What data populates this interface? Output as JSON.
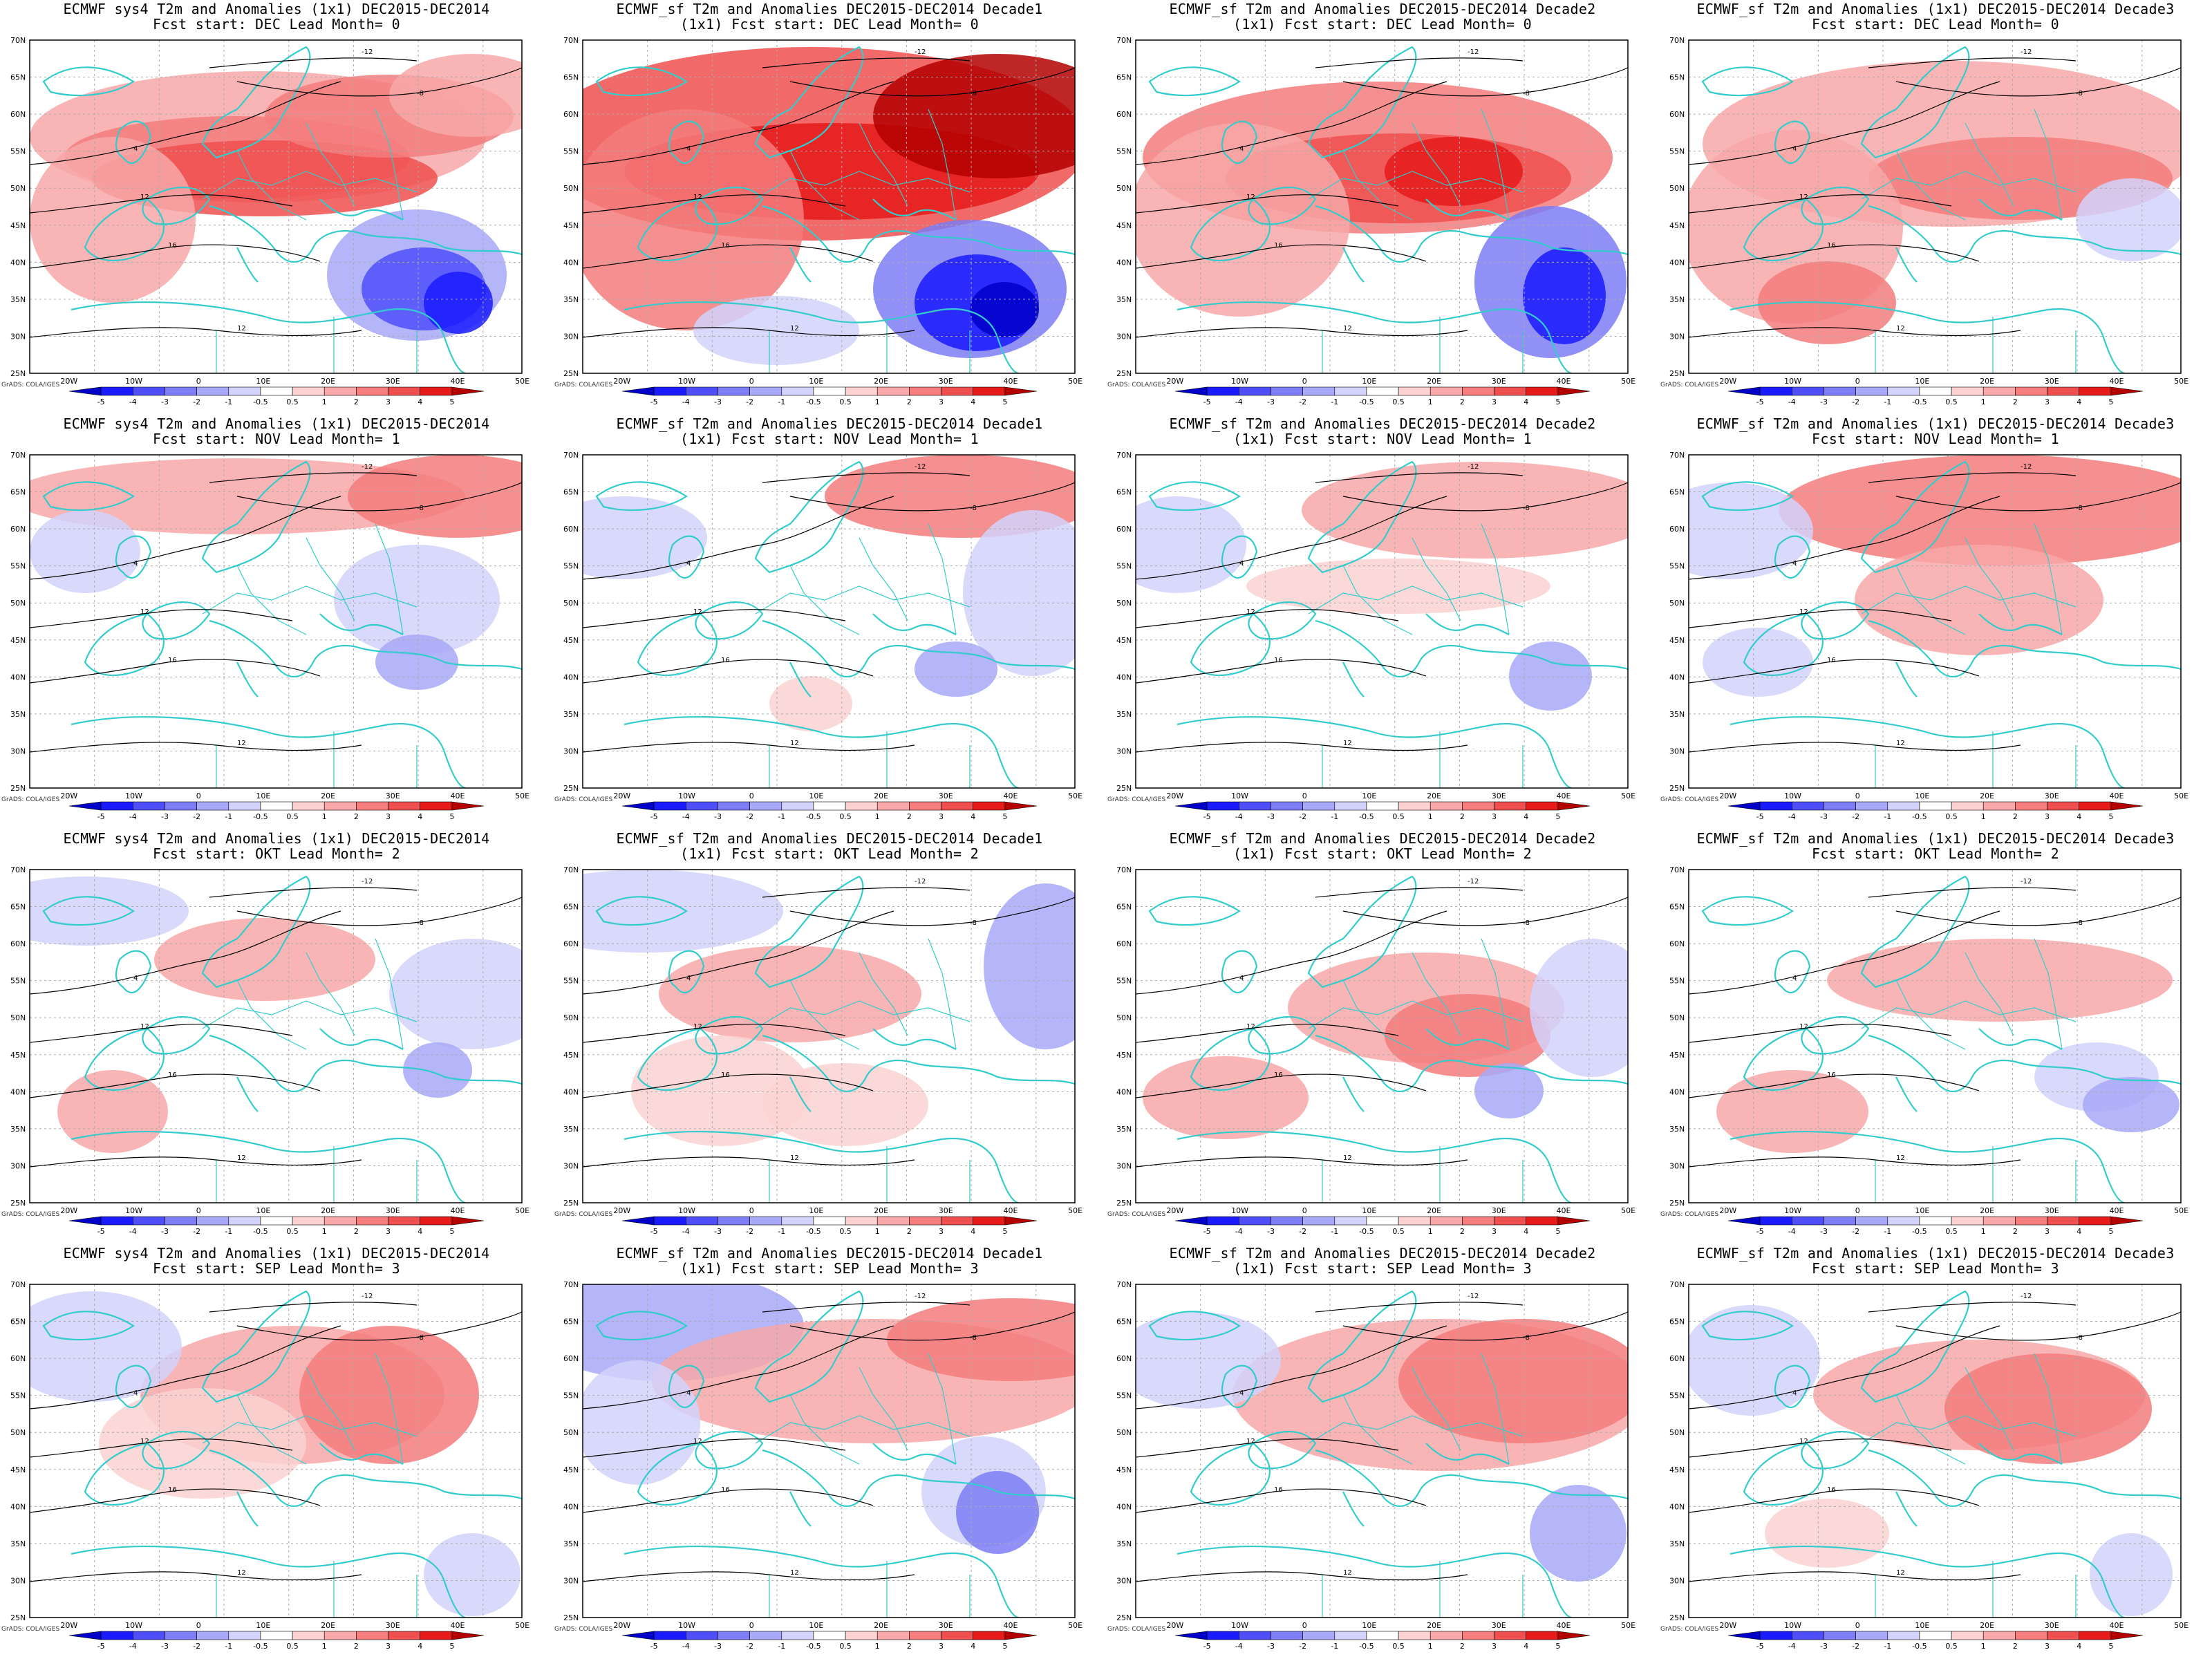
{
  "figure": {
    "footnote": "GrADS: COLA/IGES",
    "colorbar_ticks": [
      "-5",
      "-4",
      "-3",
      "-2",
      "-1",
      "-0.5",
      "0.5",
      "1",
      "2",
      "3",
      "4",
      "5"
    ],
    "colorbar_colors": [
      "#0000c8",
      "#1a1aff",
      "#4f4ffa",
      "#7d7df5",
      "#a8a8f8",
      "#d2d2fb",
      "#ffffff",
      "#fcd2d2",
      "#f8a8a8",
      "#f57d7d",
      "#f04f4f",
      "#e61a1a",
      "#b40000"
    ],
    "lat_labels": [
      "70N",
      "65N",
      "60N",
      "55N",
      "50N",
      "45N",
      "40N",
      "35N",
      "30N",
      "25N"
    ],
    "lon_labels": [
      "20W",
      "10W",
      "0",
      "10E",
      "20E",
      "30E",
      "40E",
      "50E"
    ],
    "colors": {
      "coast": "#33cccc",
      "contour": "#000000",
      "grid": "#aaaaaa"
    }
  },
  "panels": [
    {
      "title1": "ECMWF sys4 T2m and Anomalies (1x1) DEC2015-DEC2014",
      "title2": "Fcst start: DEC  Lead Month= 0"
    },
    {
      "title1": "ECMWF_sf T2m and Anomalies DEC2015-DEC2014 Decade1",
      "title2": "(1x1) Fcst start: DEC  Lead Month= 0"
    },
    {
      "title1": "ECMWF_sf T2m and Anomalies DEC2015-DEC2014 Decade2",
      "title2": "(1x1) Fcst start: DEC  Lead Month= 0"
    },
    {
      "title1": "ECMWF_sf T2m and Anomalies (1x1) DEC2015-DEC2014 Decade3",
      "title2": "Fcst start: DEC  Lead Month= 0"
    },
    {
      "title1": "ECMWF sys4 T2m and Anomalies (1x1) DEC2015-DEC2014",
      "title2": "Fcst start: NOV  Lead Month= 1"
    },
    {
      "title1": "ECMWF_sf T2m and Anomalies DEC2015-DEC2014 Decade1",
      "title2": "(1x1) Fcst start: NOV  Lead Month= 1"
    },
    {
      "title1": "ECMWF_sf T2m and Anomalies DEC2015-DEC2014 Decade2",
      "title2": "(1x1) Fcst start: NOV  Lead Month= 1"
    },
    {
      "title1": "ECMWF_sf T2m and Anomalies (1x1) DEC2015-DEC2014 Decade3",
      "title2": "Fcst start: NOV  Lead Month= 1"
    },
    {
      "title1": "ECMWF sys4 T2m and Anomalies (1x1) DEC2015-DEC2014",
      "title2": "Fcst start: OKT  Lead Month= 2"
    },
    {
      "title1": "ECMWF_sf T2m and Anomalies DEC2015-DEC2014 Decade1",
      "title2": "(1x1) Fcst start: OKT  Lead Month= 2"
    },
    {
      "title1": "ECMWF_sf T2m and Anomalies DEC2015-DEC2014 Decade2",
      "title2": "(1x1) Fcst start: OKT  Lead Month= 2"
    },
    {
      "title1": "ECMWF_sf T2m and Anomalies (1x1) DEC2015-DEC2014 Decade3",
      "title2": "Fcst start: OKT  Lead Month= 2"
    },
    {
      "title1": "ECMWF sys4 T2m and Anomalies (1x1) DEC2015-DEC2014",
      "title2": "Fcst start: SEP  Lead Month= 3"
    },
    {
      "title1": "ECMWF_sf T2m and Anomalies DEC2015-DEC2014 Decade1",
      "title2": "(1x1) Fcst start: SEP  Lead Month= 3"
    },
    {
      "title1": "ECMWF_sf T2m and Anomalies DEC2015-DEC2014 Decade2",
      "title2": "(1x1) Fcst start: SEP  Lead Month= 3"
    },
    {
      "title1": "ECMWF_sf T2m and Anomalies (1x1) DEC2015-DEC2014 Decade3",
      "title2": "Fcst start: SEP  Lead Month= 3"
    }
  ]
}
